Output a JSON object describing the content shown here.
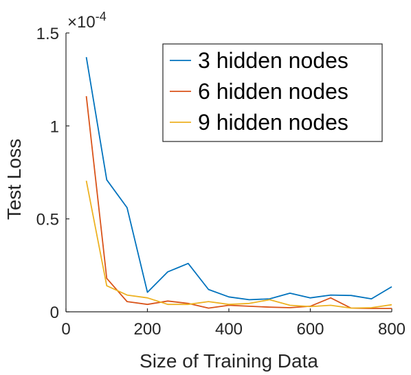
{
  "chart_data": {
    "type": "line",
    "title": "",
    "xlabel": "Size of Training Data",
    "ylabel": "Test Loss",
    "xlim": [
      0,
      800
    ],
    "ylim": [
      0,
      1.5
    ],
    "y_scale_multiplier": "×10^-4",
    "exponent_prefix": "×10",
    "exponent_power": "-4",
    "xticks": [
      0,
      200,
      400,
      600,
      800
    ],
    "xtick_labels": [
      "0",
      "200",
      "400",
      "600",
      "800"
    ],
    "yticks": [
      0,
      0.5,
      1,
      1.5
    ],
    "ytick_labels": [
      "0",
      "0.5",
      "1",
      "1.5"
    ],
    "grid": false,
    "legend_position": "top-right",
    "x": [
      50,
      100,
      150,
      200,
      250,
      300,
      350,
      400,
      450,
      500,
      550,
      600,
      650,
      700,
      750,
      800
    ],
    "series": [
      {
        "name": "3 hidden nodes",
        "color": "#0072BD",
        "values": [
          1.37,
          0.71,
          0.56,
          0.105,
          0.215,
          0.26,
          0.12,
          0.08,
          0.065,
          0.07,
          0.1,
          0.075,
          0.09,
          0.088,
          0.07,
          0.135
        ]
      },
      {
        "name": "6 hidden nodes",
        "color": "#D95319",
        "values": [
          1.16,
          0.18,
          0.055,
          0.04,
          0.058,
          0.045,
          0.02,
          0.035,
          0.03,
          0.025,
          0.022,
          0.03,
          0.075,
          0.02,
          0.018,
          0.018
        ]
      },
      {
        "name": "9 hidden nodes",
        "color": "#EDB120",
        "values": [
          0.705,
          0.14,
          0.09,
          0.075,
          0.04,
          0.04,
          0.055,
          0.04,
          0.045,
          0.065,
          0.035,
          0.028,
          0.035,
          0.02,
          0.022,
          0.038
        ]
      }
    ]
  }
}
